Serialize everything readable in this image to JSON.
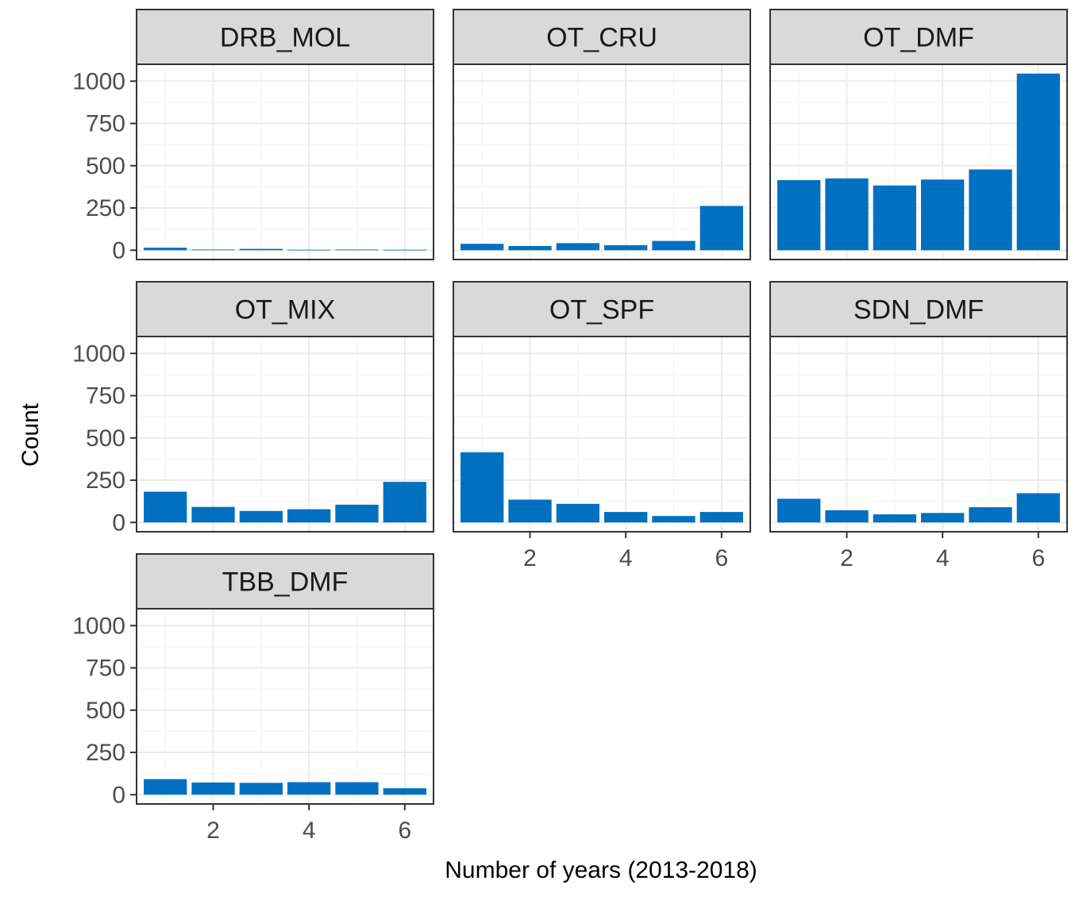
{
  "chart_data": {
    "type": "bar",
    "xlabel": "Number of years (2013-2018)",
    "ylabel": "Count",
    "x": [
      1,
      2,
      3,
      4,
      5,
      6
    ],
    "xticks": [
      "2",
      "4",
      "6"
    ],
    "yticks": [
      "0",
      "250",
      "500",
      "750",
      "1000"
    ],
    "ylim": [
      0,
      1100
    ],
    "bar_color": "#0070c0",
    "grid": true,
    "facets": [
      {
        "name": "DRB_MOL",
        "values": [
          15,
          4,
          8,
          3,
          4,
          3
        ]
      },
      {
        "name": "OT_CRU",
        "values": [
          38,
          25,
          42,
          30,
          55,
          262
        ]
      },
      {
        "name": "OT_DMF",
        "values": [
          415,
          425,
          383,
          418,
          478,
          1045
        ]
      },
      {
        "name": "OT_MIX",
        "values": [
          182,
          92,
          68,
          78,
          105,
          240
        ]
      },
      {
        "name": "OT_SPF",
        "values": [
          415,
          135,
          110,
          62,
          38,
          62
        ]
      },
      {
        "name": "SDN_DMF",
        "values": [
          140,
          72,
          48,
          56,
          90,
          173
        ]
      },
      {
        "name": "TBB_DMF",
        "values": [
          92,
          72,
          70,
          74,
          74,
          38
        ]
      }
    ]
  }
}
